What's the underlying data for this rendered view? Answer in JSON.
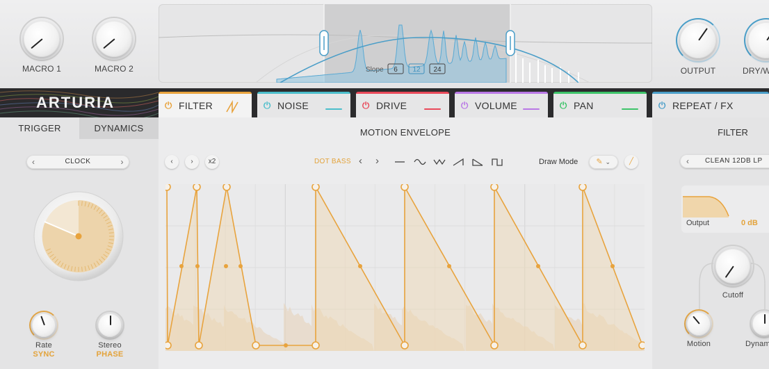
{
  "macros": [
    {
      "label": "MACRO 1"
    },
    {
      "label": "MACRO 2"
    }
  ],
  "output_knobs": [
    {
      "label": "OUTPUT"
    },
    {
      "label": "DRY/W"
    }
  ],
  "spectrum": {
    "slope_label": "Slope",
    "slope_options": [
      "6",
      "12",
      "24"
    ],
    "selected_slope": "12"
  },
  "brand": {
    "logo": "ARTURIA"
  },
  "tabs": [
    {
      "label": "FILTER",
      "color": "#e8a33d",
      "active": true
    },
    {
      "label": "NOISE",
      "color": "#4bbecb"
    },
    {
      "label": "DRIVE",
      "color": "#e9495a"
    },
    {
      "label": "VOLUME",
      "color": "#b978e6"
    },
    {
      "label": "PAN",
      "color": "#3ec46a"
    },
    {
      "label": "REPEAT / FX",
      "color": "#4a9ec8"
    }
  ],
  "left_panel": {
    "tabs": [
      "TRIGGER",
      "DYNAMICS"
    ],
    "active_tab": "TRIGGER",
    "trigger_mode": "CLOCK",
    "knobs": [
      {
        "label": "Rate",
        "value": "SYNC"
      },
      {
        "label": "Stereo",
        "value": "PHASE"
      }
    ]
  },
  "center": {
    "title": "MOTION ENVELOPE",
    "multiplier_label": "x2",
    "preset_name": "DOT BASS",
    "draw_mode_label": "Draw Mode",
    "shape_icons": [
      "flat-line-icon",
      "sine-wave-icon",
      "triangle-wave-icon",
      "ramp-up-icon",
      "ramp-down-icon",
      "square-wave-icon"
    ],
    "accent_color": "#e8a33d"
  },
  "right_panel": {
    "title": "FILTER",
    "filter_type": "CLEAN 12DB LP",
    "output_label": "Output",
    "output_value": "0 dB",
    "cutoff_label": "Cutoff",
    "motion_label": "Motion",
    "dynamics_label": "Dynam"
  }
}
